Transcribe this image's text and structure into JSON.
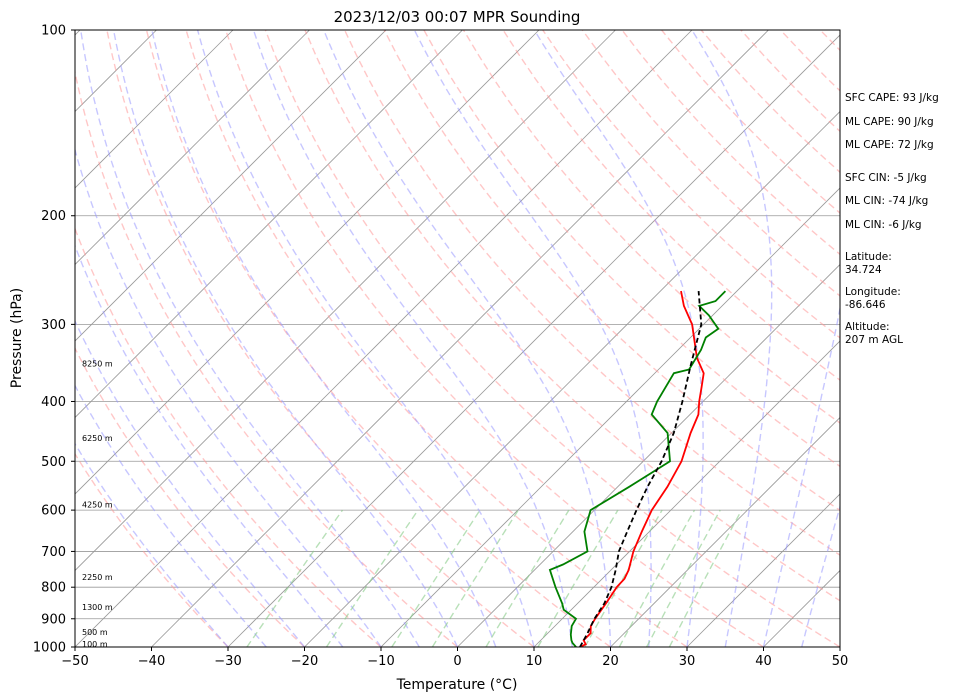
{
  "chart_data": {
    "type": "line",
    "title": "2023/12/03 00:07 MPR Sounding",
    "xlabel": "Temperature (°C)",
    "ylabel": "Pressure (hPa)",
    "xlim": [
      -50,
      50
    ],
    "ylim": [
      1000,
      100
    ],
    "y_scale": "log",
    "x_ticks": [
      -50,
      -40,
      -30,
      -20,
      -10,
      0,
      10,
      20,
      30,
      40,
      50
    ],
    "y_ticks": [
      1000,
      900,
      800,
      700,
      600,
      500,
      400,
      300,
      200,
      100
    ],
    "grid": true,
    "colors": {
      "temperature": "#ff0000",
      "dewpoint": "#008000",
      "parcel": "#000000",
      "dry_adiabats": "#ff9999",
      "moist_adiabats": "#9999ff",
      "mixing_ratio": "#88cc88",
      "isotherms": "#999999"
    },
    "height_labels": [
      {
        "text": "100 m",
        "pressure": 988
      },
      {
        "text": "500 m",
        "pressure": 945
      },
      {
        "text": "1300 m",
        "pressure": 862
      },
      {
        "text": "2250 m",
        "pressure": 770
      },
      {
        "text": "4250 m",
        "pressure": 588
      },
      {
        "text": "6250 m",
        "pressure": 458
      },
      {
        "text": "8250 m",
        "pressure": 347
      }
    ],
    "series": [
      {
        "key": "temperature",
        "points": [
          [
            1000,
            16
          ],
          [
            990,
            16.4
          ],
          [
            975,
            15.6
          ],
          [
            950,
            15.6
          ],
          [
            925,
            14.7
          ],
          [
            900,
            14.3
          ],
          [
            875,
            14
          ],
          [
            850,
            13.7
          ],
          [
            800,
            13
          ],
          [
            775,
            12.9
          ],
          [
            750,
            12.3
          ],
          [
            700,
            10.5
          ],
          [
            650,
            9
          ],
          [
            600,
            7.5
          ],
          [
            550,
            6.5
          ],
          [
            500,
            5
          ],
          [
            450,
            2.5
          ],
          [
            420,
            1.1
          ],
          [
            400,
            -0.5
          ],
          [
            380,
            -2
          ],
          [
            360,
            -3.6
          ],
          [
            340,
            -6.5
          ],
          [
            300,
            -11.5
          ],
          [
            280,
            -15
          ],
          [
            265,
            -17.3
          ]
        ]
      },
      {
        "key": "dewpoint",
        "points": [
          [
            1000,
            15.5
          ],
          [
            985,
            14.5
          ],
          [
            975,
            14
          ],
          [
            955,
            13.2
          ],
          [
            925,
            12.2
          ],
          [
            900,
            11.8
          ],
          [
            870,
            9
          ],
          [
            850,
            8
          ],
          [
            800,
            5
          ],
          [
            750,
            2
          ],
          [
            735,
            3
          ],
          [
            700,
            4.5
          ],
          [
            650,
            1.5
          ],
          [
            600,
            -0.5
          ],
          [
            550,
            1.5
          ],
          [
            500,
            3.5
          ],
          [
            450,
            -0.5
          ],
          [
            420,
            -5
          ],
          [
            400,
            -6
          ],
          [
            360,
            -7.5
          ],
          [
            355,
            -6
          ],
          [
            330,
            -7
          ],
          [
            315,
            -8
          ],
          [
            305,
            -7.5
          ],
          [
            290,
            -10.5
          ],
          [
            280,
            -13
          ],
          [
            275,
            -11.5
          ],
          [
            265,
            -11.5
          ]
        ]
      },
      {
        "key": "parcel",
        "points": [
          [
            1000,
            16
          ],
          [
            950,
            15.2
          ],
          [
            900,
            14.2
          ],
          [
            850,
            13.5
          ],
          [
            800,
            12.3
          ],
          [
            750,
            10.6
          ],
          [
            700,
            8.6
          ],
          [
            650,
            7.1
          ],
          [
            600,
            5.5
          ],
          [
            550,
            3.9
          ],
          [
            500,
            2.4
          ],
          [
            450,
            0.3
          ],
          [
            400,
            -2.7
          ],
          [
            350,
            -6.3
          ],
          [
            300,
            -10.3
          ],
          [
            265,
            -15
          ]
        ]
      }
    ]
  },
  "stats": {
    "sfc_cape": "SFC CAPE: 93 J/kg",
    "ml_cape_1": "ML CAPE: 90 J/kg",
    "ml_cape_2": "ML CAPE: 72 J/kg",
    "sfc_cin": "SFC CIN: -5 J/kg",
    "ml_cin_1": "ML CIN: -74 J/kg",
    "ml_cin_2": "ML CIN: -6 J/kg",
    "latitude_label": "Latitude:",
    "latitude_value": "34.724",
    "longitude_label": "Longitude:",
    "longitude_value": "-86.646",
    "altitude_label": "Altitude:",
    "altitude_value": "207 m AGL"
  }
}
